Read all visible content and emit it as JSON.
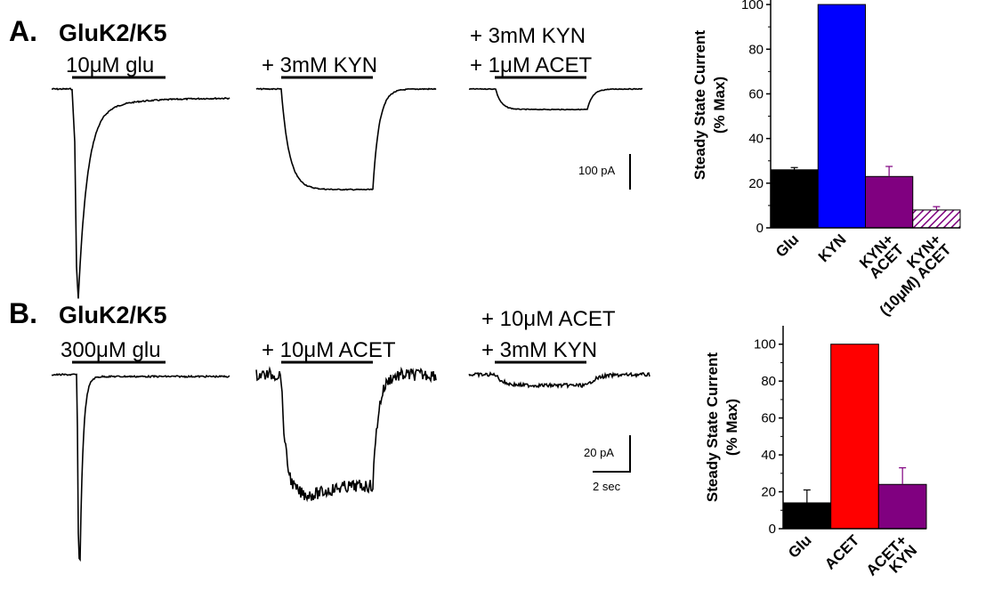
{
  "panelA": {
    "letter": "A.",
    "construct": "GluK2/K5",
    "conditions": [
      {
        "line1": "",
        "line2": "10μM glu"
      },
      {
        "line1": "",
        "line2": "+ 3mM KYN"
      },
      {
        "line1": "+ 3mM KYN",
        "line2": "+ 1μM ACET"
      }
    ],
    "scalebar": "100 pA"
  },
  "panelB": {
    "letter": "B.",
    "construct": "GluK2/K5",
    "conditions": [
      {
        "line1": "",
        "line2": "300μM glu"
      },
      {
        "line1": "",
        "line2": "+ 10μM ACET"
      },
      {
        "line1": "+ 10μM ACET",
        "line2": "+ 3mM KYN"
      }
    ],
    "scalebar_y": "20 pA",
    "scalebar_x": "2 sec"
  },
  "chart_data": [
    {
      "type": "bar",
      "ylabel_line1": "Steady State Current",
      "ylabel_line2": "(% Max)",
      "ylim": [
        0,
        110
      ],
      "yticks": [
        0,
        20,
        40,
        60,
        80,
        100
      ],
      "categories": [
        {
          "lines": [
            "Glu"
          ]
        },
        {
          "lines": [
            "KYN"
          ]
        },
        {
          "lines": [
            "KYN+",
            "ACET"
          ]
        },
        {
          "lines": [
            "KYN+",
            "(10μM) ACET"
          ]
        }
      ],
      "values": [
        26,
        100,
        23,
        8
      ],
      "errors": [
        1,
        0,
        4.5,
        1.5
      ],
      "colors": [
        "#000000",
        "#0000ff",
        "#800080",
        "#800080"
      ],
      "hatched": [
        false,
        false,
        false,
        true
      ]
    },
    {
      "type": "bar",
      "ylabel_line1": "Steady State Current",
      "ylabel_line2": "(% Max)",
      "ylim": [
        0,
        110
      ],
      "yticks": [
        0,
        20,
        40,
        60,
        80,
        100
      ],
      "categories": [
        {
          "lines": [
            "Glu"
          ]
        },
        {
          "lines": [
            "ACET"
          ]
        },
        {
          "lines": [
            "ACET+",
            "KYN"
          ]
        }
      ],
      "values": [
        14,
        100,
        24
      ],
      "errors": [
        7,
        0,
        9
      ],
      "colors": [
        "#000000",
        "#ff0000",
        "#800080"
      ],
      "hatched": [
        false,
        false,
        false
      ]
    }
  ]
}
